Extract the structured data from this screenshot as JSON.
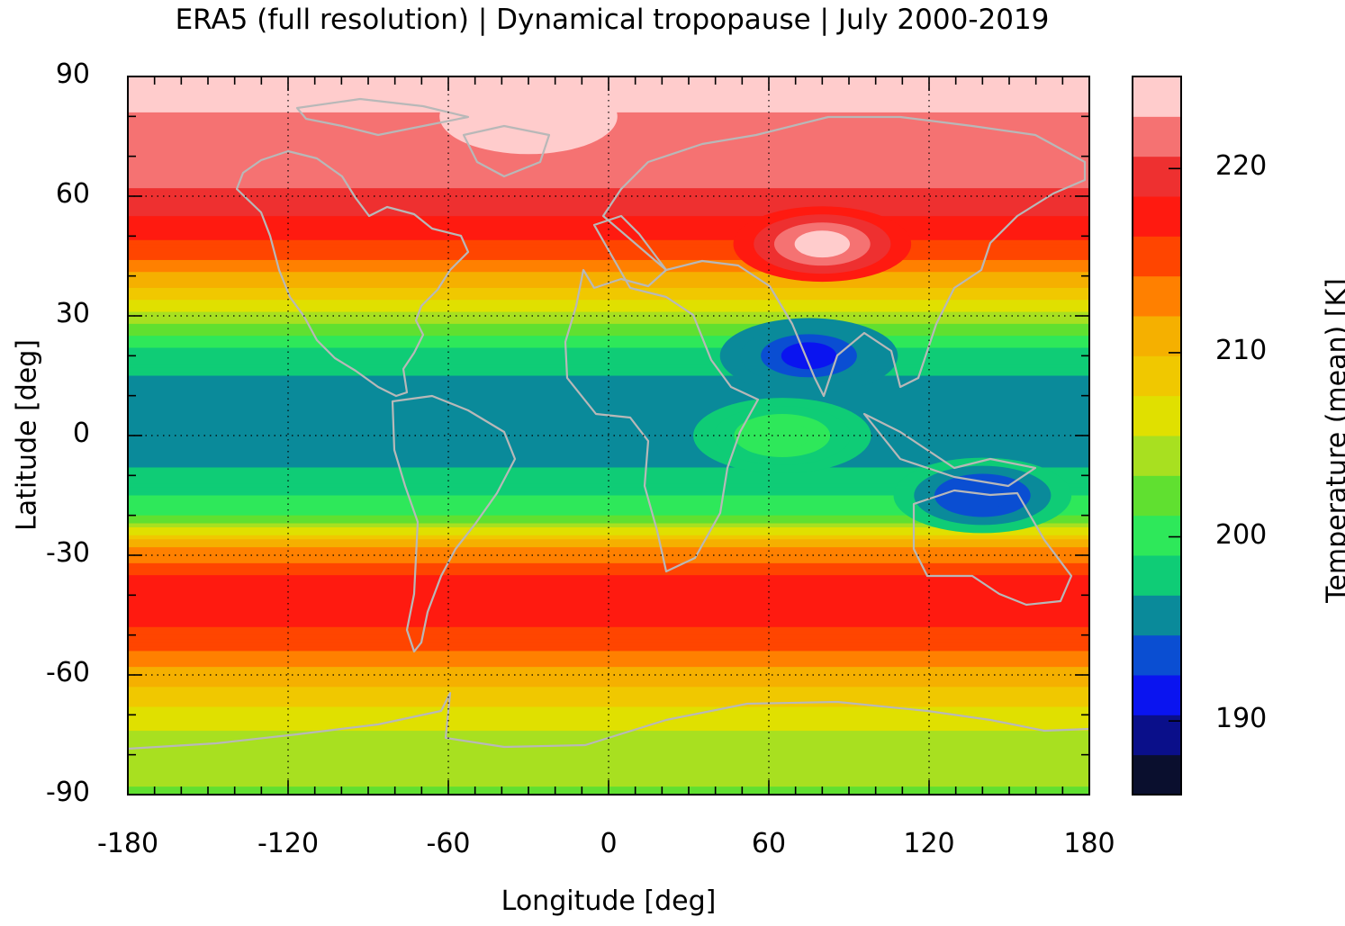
{
  "title": "ERA5 (full resolution) | Dynamical tropopause | July 2000-2019",
  "chart_data": {
    "type": "heatmap",
    "title": "ERA5 (full resolution) | Dynamical tropopause | July 2000-2019",
    "xlabel": "Longitude [deg]",
    "ylabel": "Latitude [deg]",
    "colorbar_label": "Temperature (mean) [K]",
    "xlim": [
      -180,
      180
    ],
    "ylim": [
      -90,
      90
    ],
    "x_ticks": [
      "-180",
      "-120",
      "-60",
      "0",
      "60",
      "120",
      "180"
    ],
    "y_ticks": [
      "90",
      "60",
      "30",
      "0",
      "-30",
      "-60",
      "-90"
    ],
    "x_tick_values": [
      -180,
      -120,
      -60,
      0,
      60,
      120,
      180
    ],
    "y_tick_values": [
      90,
      60,
      30,
      0,
      -30,
      -60,
      -90
    ],
    "colorbar_ticks": [
      "220",
      "210",
      "200",
      "190"
    ],
    "colorbar_tick_values": [
      220,
      210,
      200,
      190
    ],
    "colorbar_range": [
      186,
      225
    ],
    "colorbar_colors": [
      "#0a0f2e",
      "#0a0f8a",
      "#0a14f0",
      "#0a4ed2",
      "#0a8a9a",
      "#0fcc76",
      "#2ee85a",
      "#60e030",
      "#a8e020",
      "#e0e000",
      "#f0c800",
      "#f5b000",
      "#ff8000",
      "#ff4500",
      "#ff1a10",
      "#ee3030",
      "#f57272",
      "#ffcccc"
    ],
    "grid": true,
    "grid_style": "dotted",
    "zonal_profile_K": [
      {
        "lat": 90,
        "value": 224
      },
      {
        "lat": 75,
        "value": 222
      },
      {
        "lat": 63,
        "value": 221
      },
      {
        "lat": 50,
        "value": 217
      },
      {
        "lat": 42,
        "value": 213
      },
      {
        "lat": 32,
        "value": 206
      },
      {
        "lat": 22,
        "value": 199
      },
      {
        "lat": 12,
        "value": 196
      },
      {
        "lat": 0,
        "value": 196
      },
      {
        "lat": -10,
        "value": 197
      },
      {
        "lat": -20,
        "value": 201
      },
      {
        "lat": -28,
        "value": 212
      },
      {
        "lat": -38,
        "value": 218
      },
      {
        "lat": -50,
        "value": 216
      },
      {
        "lat": -60,
        "value": 211
      },
      {
        "lat": -75,
        "value": 205
      },
      {
        "lat": -90,
        "value": 203
      }
    ],
    "anomalies": [
      {
        "lon": 75,
        "lat": 20,
        "value": 192,
        "feature": "cold region over South Asia"
      },
      {
        "lon": 140,
        "lat": -15,
        "value": 193,
        "feature": "cold region over maritime continent"
      },
      {
        "lon": 65,
        "lat": 0,
        "value": 200,
        "feature": "warmer region over Indian Ocean"
      },
      {
        "lon": -30,
        "lat": 80,
        "value": 224,
        "feature": "warm over Greenland"
      },
      {
        "lon": 80,
        "lat": 48,
        "value": 224,
        "feature": "warm over Central Asia"
      }
    ]
  }
}
